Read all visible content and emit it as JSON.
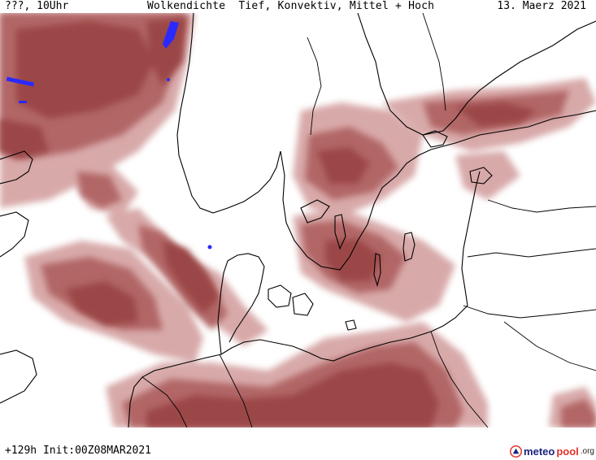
{
  "header": {
    "left": "???, 10Uhr",
    "title": "Wolkendichte  Tief, Konvektiv, Mittel + Hoch",
    "date": "13. Maerz 2021"
  },
  "footer": {
    "run": "+129h Init:00Z08MAR2021",
    "logo": {
      "part1": "meteo",
      "part2": "pool",
      "part3": ".org"
    }
  },
  "colors": {
    "cloud_dark": "#9b4747",
    "cloud_mid": "#b06363",
    "cloud_light": "#d4a0a0",
    "precip": "#2a2aff",
    "coast": "#000000",
    "border": "#000000",
    "logo_part1": "#1a237e",
    "logo_part2": "#e0352b"
  },
  "icons": {
    "logo": "meteopool-logo-icon"
  }
}
